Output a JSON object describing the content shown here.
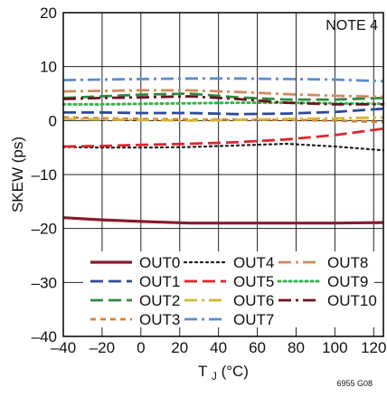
{
  "chart_data": {
    "type": "line",
    "xlabel_main": "T",
    "xlabel_sub": "J",
    "xlabel_tail": " (°C)",
    "ylabel": "SKEW (ps)",
    "annotation": "NOTE 4",
    "figure_id": "6955 G08",
    "xlim": [
      -40,
      125
    ],
    "ylim": [
      -40,
      20
    ],
    "xticks": [
      -40,
      -20,
      0,
      20,
      40,
      60,
      80,
      100,
      120
    ],
    "xtick_labels": [
      "–40",
      "–20",
      "0",
      "20",
      "40",
      "60",
      "80",
      "100",
      "120"
    ],
    "yticks": [
      -40,
      -30,
      -20,
      -10,
      0,
      10,
      20
    ],
    "ytick_labels": [
      "–40",
      "–30",
      "–20",
      "–10",
      "0",
      "10",
      "20"
    ],
    "grid": true,
    "legend_placement": "bottom-center",
    "series": [
      {
        "name": "OUT0",
        "color": "#8b1a2e",
        "dash": "solid",
        "width": 3.2,
        "x": [
          -40,
          -20,
          0,
          25,
          50,
          75,
          100,
          125
        ],
        "y": [
          -18,
          -18.4,
          -18.7,
          -19,
          -19,
          -19,
          -19,
          -18.9
        ]
      },
      {
        "name": "OUT1",
        "color": "#2c4a9c",
        "dash": "long",
        "width": 2.8,
        "x": [
          -40,
          -20,
          0,
          25,
          50,
          75,
          100,
          125
        ],
        "y": [
          1.5,
          1.5,
          1.4,
          1.4,
          1.2,
          1.3,
          1.6,
          2.2
        ]
      },
      {
        "name": "OUT2",
        "color": "#2e8b3e",
        "dash": "long",
        "width": 2.8,
        "x": [
          -40,
          -20,
          0,
          25,
          50,
          75,
          100,
          125
        ],
        "y": [
          4.2,
          4.5,
          4.8,
          5.0,
          4.3,
          3.9,
          3.9,
          4.2
        ]
      },
      {
        "name": "OUT3",
        "color": "#d1813a",
        "dash": "short",
        "width": 2.8,
        "x": [
          -40,
          -20,
          0,
          25,
          50,
          75,
          100,
          125
        ],
        "y": [
          0.6,
          0.4,
          0.3,
          0.2,
          0.2,
          0.1,
          0,
          -0.3
        ]
      },
      {
        "name": "OUT4",
        "color": "#1a1a1a",
        "dash": "dot",
        "width": 2.2,
        "x": [
          -40,
          -20,
          0,
          25,
          50,
          75,
          100,
          125
        ],
        "y": [
          -4.9,
          -5,
          -5,
          -4.9,
          -4.6,
          -4.3,
          -4.8,
          -5.5
        ]
      },
      {
        "name": "OUT5",
        "color": "#e0252c",
        "dash": "long",
        "width": 2.8,
        "x": [
          -40,
          -20,
          0,
          25,
          50,
          75,
          100,
          125
        ],
        "y": [
          -4.8,
          -4.7,
          -4.5,
          -4.3,
          -4,
          -3.5,
          -2.7,
          -1.5
        ]
      },
      {
        "name": "OUT6",
        "color": "#d6b530",
        "dash": "dashdot",
        "width": 2.8,
        "x": [
          -40,
          -20,
          0,
          25,
          50,
          75,
          100,
          125
        ],
        "y": [
          0.3,
          0.2,
          0.1,
          0,
          0.1,
          0.3,
          0.4,
          0.6
        ]
      },
      {
        "name": "OUT7",
        "color": "#5b8ccf",
        "dash": "dashdot",
        "width": 2.8,
        "x": [
          -40,
          -20,
          0,
          25,
          50,
          75,
          100,
          125
        ],
        "y": [
          7.5,
          7.6,
          7.7,
          7.8,
          7.8,
          7.7,
          7.6,
          7.3
        ]
      },
      {
        "name": "OUT8",
        "color": "#d2895a",
        "dash": "dashdot",
        "width": 2.8,
        "x": [
          -40,
          -20,
          0,
          25,
          50,
          75,
          100,
          125
        ],
        "y": [
          5.4,
          5.5,
          5.6,
          5.6,
          5.3,
          4.9,
          4.6,
          4.4
        ]
      },
      {
        "name": "OUT9",
        "color": "#32b44a",
        "dash": "dot",
        "width": 3.0,
        "x": [
          -40,
          -20,
          0,
          25,
          50,
          75,
          100,
          125
        ],
        "y": [
          3.0,
          3.0,
          3.1,
          3.2,
          3.3,
          3.3,
          3.2,
          3.1
        ]
      },
      {
        "name": "OUT10",
        "color": "#6e1020",
        "dash": "dashdot",
        "width": 2.8,
        "x": [
          -40,
          -20,
          0,
          25,
          50,
          75,
          100,
          125
        ],
        "y": [
          4.0,
          4.2,
          4.3,
          4.5,
          4.0,
          3.3,
          3.0,
          3.0
        ]
      }
    ]
  }
}
